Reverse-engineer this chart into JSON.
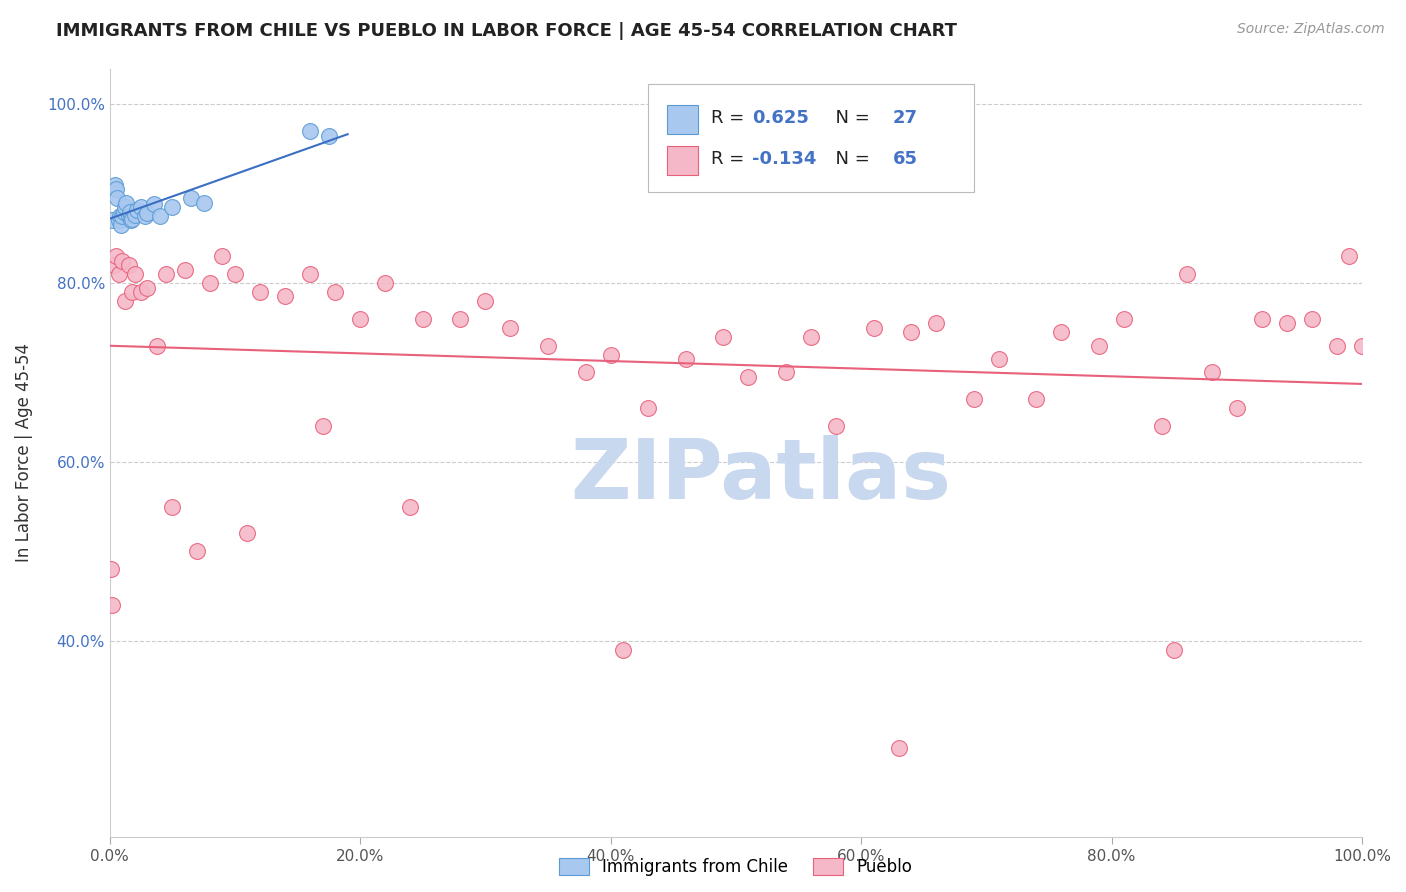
{
  "title": "IMMIGRANTS FROM CHILE VS PUEBLO IN LABOR FORCE | AGE 45-54 CORRELATION CHART",
  "source_text": "Source: ZipAtlas.com",
  "ylabel": "In Labor Force | Age 45-54",
  "x_min": 0.0,
  "x_max": 1.0,
  "y_min": 0.18,
  "y_max": 1.04,
  "y_ticks": [
    0.4,
    0.6,
    0.8,
    1.0
  ],
  "y_tick_labels": [
    "40.0%",
    "60.0%",
    "80.0%",
    "100.0%"
  ],
  "x_ticks": [
    0.0,
    0.2,
    0.4,
    0.6,
    0.8,
    1.0
  ],
  "x_tick_labels": [
    "0.0%",
    "20.0%",
    "40.0%",
    "60.0%",
    "80.0%",
    "100.0%"
  ],
  "blue_R": 0.625,
  "blue_N": 27,
  "pink_R": -0.134,
  "pink_N": 65,
  "blue_line_color": "#3a6fc4",
  "pink_line_color": "#e8607a",
  "blue_scatter_face": "#a8c8f0",
  "blue_scatter_edge": "#5b9bd5",
  "pink_scatter_face": "#f5b8c8",
  "pink_scatter_edge": "#e8607a",
  "watermark_text": "ZIPatlas",
  "watermark_color": "#c8d8ee",
  "legend_label_blue": "Immigrants from Chile",
  "legend_label_pink": "Pueblo",
  "blue_x": [
    0.002,
    0.004,
    0.005,
    0.006,
    0.007,
    0.008,
    0.009,
    0.01,
    0.011,
    0.012,
    0.013,
    0.015,
    0.016,
    0.017,
    0.018,
    0.02,
    0.022,
    0.025,
    0.028,
    0.03,
    0.035,
    0.04,
    0.05,
    0.065,
    0.075,
    0.16,
    0.175
  ],
  "blue_y": [
    0.87,
    0.91,
    0.905,
    0.895,
    0.87,
    0.875,
    0.865,
    0.875,
    0.88,
    0.885,
    0.89,
    0.875,
    0.88,
    0.87,
    0.872,
    0.876,
    0.882,
    0.885,
    0.875,
    0.878,
    0.888,
    0.875,
    0.885,
    0.895,
    0.89,
    0.97,
    0.965
  ],
  "pink_x": [
    0.001,
    0.002,
    0.003,
    0.005,
    0.007,
    0.01,
    0.012,
    0.015,
    0.018,
    0.02,
    0.025,
    0.03,
    0.038,
    0.045,
    0.06,
    0.08,
    0.09,
    0.1,
    0.12,
    0.14,
    0.16,
    0.18,
    0.2,
    0.22,
    0.25,
    0.28,
    0.3,
    0.32,
    0.35,
    0.38,
    0.4,
    0.43,
    0.46,
    0.49,
    0.51,
    0.54,
    0.56,
    0.58,
    0.61,
    0.64,
    0.66,
    0.69,
    0.71,
    0.74,
    0.76,
    0.79,
    0.81,
    0.84,
    0.86,
    0.88,
    0.9,
    0.92,
    0.94,
    0.96,
    0.98,
    0.99,
    1.0,
    0.05,
    0.07,
    0.11,
    0.17,
    0.24,
    0.41,
    0.63,
    0.85
  ],
  "pink_y": [
    0.48,
    0.44,
    0.82,
    0.83,
    0.81,
    0.825,
    0.78,
    0.82,
    0.79,
    0.81,
    0.79,
    0.795,
    0.73,
    0.81,
    0.815,
    0.8,
    0.83,
    0.81,
    0.79,
    0.785,
    0.81,
    0.79,
    0.76,
    0.8,
    0.76,
    0.76,
    0.78,
    0.75,
    0.73,
    0.7,
    0.72,
    0.66,
    0.715,
    0.74,
    0.695,
    0.7,
    0.74,
    0.64,
    0.75,
    0.745,
    0.755,
    0.67,
    0.715,
    0.67,
    0.745,
    0.73,
    0.76,
    0.64,
    0.81,
    0.7,
    0.66,
    0.76,
    0.755,
    0.76,
    0.73,
    0.83,
    0.73,
    0.55,
    0.5,
    0.52,
    0.64,
    0.55,
    0.39,
    0.28,
    0.39
  ]
}
